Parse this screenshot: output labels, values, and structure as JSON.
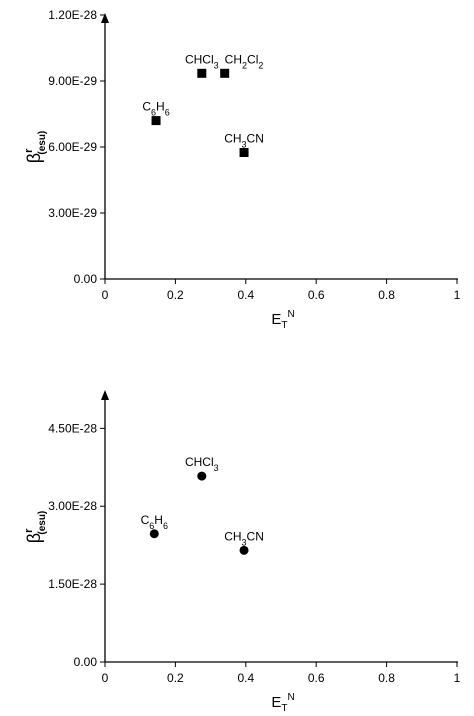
{
  "chart_data": [
    {
      "type": "scatter",
      "marker": "square",
      "marker_color": "#000000",
      "xlabel": {
        "main": "E",
        "sub": "T",
        "sup": "N"
      },
      "ylabel": {
        "main": "β",
        "sup": "r",
        "sub": "(esu)"
      },
      "xlim": [
        0,
        1
      ],
      "ylim": [
        0,
        1.2e-28
      ],
      "x_ticks": [
        {
          "value": 0,
          "label": "0"
        },
        {
          "value": 0.2,
          "label": "0.2"
        },
        {
          "value": 0.4,
          "label": "0.4"
        },
        {
          "value": 0.6,
          "label": "0.6"
        },
        {
          "value": 0.8,
          "label": "0.8"
        },
        {
          "value": 1,
          "label": "1"
        }
      ],
      "y_ticks": [
        {
          "value": 0,
          "label": "0.00"
        },
        {
          "value": 3e-29,
          "label": "3.00E-29"
        },
        {
          "value": 6e-29,
          "label": "6.00E-29"
        },
        {
          "value": 9e-29,
          "label": "9.00E-29"
        },
        {
          "value": 1.2e-28,
          "label": "1.20E-28"
        }
      ],
      "points": [
        {
          "x": 0.145,
          "y": 7.2e-29,
          "label": [
            {
              "t": "C"
            },
            {
              "t": "6",
              "sub": true
            },
            {
              "t": "H"
            },
            {
              "t": "6",
              "sub": true
            }
          ],
          "label_pos": "above"
        },
        {
          "x": 0.275,
          "y": 9.35e-29,
          "label": [
            {
              "t": "CHCl"
            },
            {
              "t": "3",
              "sub": true
            }
          ],
          "label_pos": "above"
        },
        {
          "x": 0.34,
          "y": 9.35e-29,
          "label": [
            {
              "t": "CH"
            },
            {
              "t": "2",
              "sub": true
            },
            {
              "t": "Cl"
            },
            {
              "t": "2",
              "sub": true
            }
          ],
          "label_pos": "above-right"
        },
        {
          "x": 0.395,
          "y": 5.75e-29,
          "label": [
            {
              "t": "CH"
            },
            {
              "t": "3",
              "sub": true
            },
            {
              "t": "CN"
            }
          ],
          "label_pos": "above"
        }
      ]
    },
    {
      "type": "scatter",
      "marker": "circle",
      "marker_color": "#000000",
      "xlabel": {
        "main": "E",
        "sub": "T",
        "sup": "N"
      },
      "ylabel": {
        "main": "β",
        "sup": "r",
        "sub": "(esu)"
      },
      "xlim": [
        0,
        1
      ],
      "ylim": [
        0,
        5.2e-28
      ],
      "x_ticks": [
        {
          "value": 0,
          "label": "0"
        },
        {
          "value": 0.2,
          "label": "0.2"
        },
        {
          "value": 0.4,
          "label": "0.4"
        },
        {
          "value": 0.6,
          "label": "0.6"
        },
        {
          "value": 0.8,
          "label": "0.8"
        },
        {
          "value": 1,
          "label": "1"
        }
      ],
      "y_ticks": [
        {
          "value": 0,
          "label": "0.00"
        },
        {
          "value": 1.5e-28,
          "label": "1.50E-28"
        },
        {
          "value": 3e-28,
          "label": "3.00E-28"
        },
        {
          "value": 4.5e-28,
          "label": "4.50E-28"
        }
      ],
      "points": [
        {
          "x": 0.14,
          "y": 2.47e-28,
          "label": [
            {
              "t": "C"
            },
            {
              "t": "6",
              "sub": true
            },
            {
              "t": "H"
            },
            {
              "t": "6",
              "sub": true
            }
          ],
          "label_pos": "above"
        },
        {
          "x": 0.275,
          "y": 3.58e-28,
          "label": [
            {
              "t": "CHCl"
            },
            {
              "t": "3",
              "sub": true
            }
          ],
          "label_pos": "above"
        },
        {
          "x": 0.395,
          "y": 2.15e-28,
          "label": [
            {
              "t": "CH"
            },
            {
              "t": "3",
              "sub": true
            },
            {
              "t": "CN"
            }
          ],
          "label_pos": "above"
        }
      ]
    }
  ]
}
